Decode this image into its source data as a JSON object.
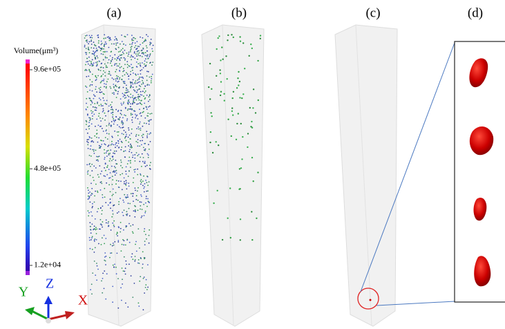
{
  "panels": [
    "(a)",
    "(b)",
    "(c)",
    "(d)"
  ],
  "colorbar": {
    "title": "Volume(μm³)",
    "lim": [
      -15000,
      990000
    ],
    "ticks": [
      {
        "value": 960000,
        "label": "9.6e+05"
      },
      {
        "value": 480000,
        "label": "4.8e+05"
      },
      {
        "value": 12000,
        "label": "1.2e+04"
      }
    ]
  },
  "axes": {
    "y": "Y",
    "z": "Z",
    "x": "X"
  }
}
